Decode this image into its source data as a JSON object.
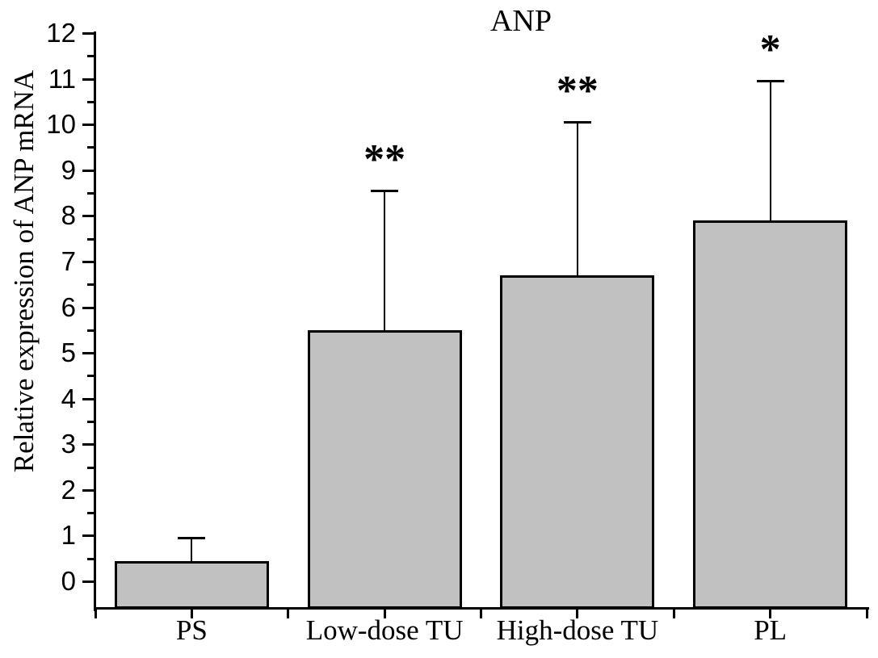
{
  "figure": {
    "title": "ANP"
  },
  "chart_data": {
    "type": "bar",
    "title": "ANP",
    "xlabel": "",
    "ylabel": "Relative expression of ANP mRNA",
    "categories": [
      "PS",
      "Low-dose TU",
      "High-dose TU",
      "PL"
    ],
    "values": [
      0.45,
      5.5,
      6.7,
      7.9
    ],
    "errors_plus": [
      0.5,
      3.05,
      3.35,
      3.05
    ],
    "annotations": [
      "",
      "**",
      "**",
      "*"
    ],
    "ylim": [
      -0.6,
      12
    ],
    "yticks_major": [
      0,
      1,
      2,
      3,
      4,
      5,
      6,
      7,
      8,
      9,
      10,
      11,
      12
    ],
    "ytick_minor_step": 0.5,
    "grid": false,
    "legend_position": "none",
    "bar_color": "#c1c1c1",
    "bar_border_color": "#000000",
    "axis_color": "#000000",
    "background_color": "#ffffff"
  }
}
